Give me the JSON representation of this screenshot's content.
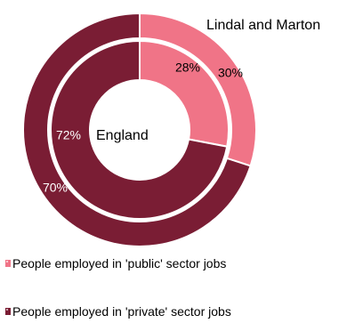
{
  "chart_data": {
    "type": "pie",
    "variant": "nested-donut",
    "categories": [
      "People employed in 'public' sector jobs",
      "People employed in 'private' sector jobs"
    ],
    "series": [
      {
        "name": "Lindal and Marton",
        "ring": "outer",
        "values": [
          30,
          70
        ],
        "labels": [
          "30%",
          "70%"
        ]
      },
      {
        "name": "England",
        "ring": "inner",
        "values": [
          28,
          72
        ],
        "labels": [
          "28%",
          "72%"
        ]
      }
    ],
    "colors": [
      "#f07487",
      "#7a1d34"
    ],
    "legend_position": "bottom",
    "unit": "%"
  }
}
